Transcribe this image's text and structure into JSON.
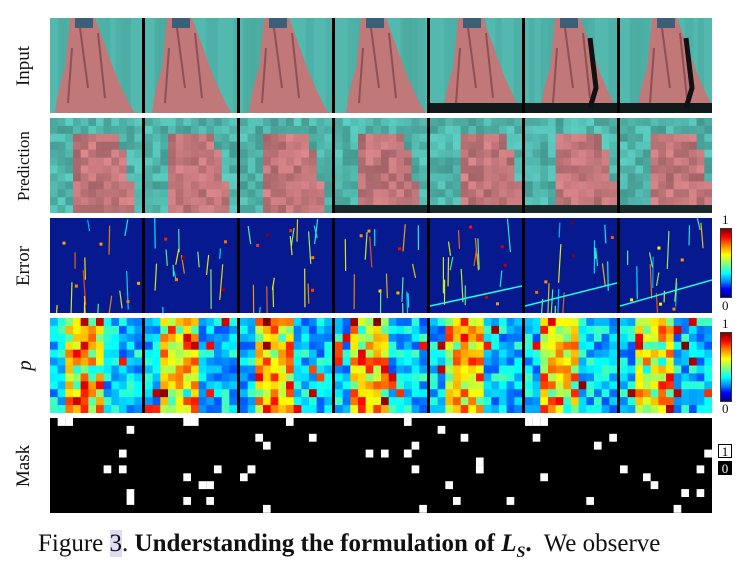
{
  "rows": {
    "input": {
      "label": "Input"
    },
    "prediction": {
      "label": "Prediction"
    },
    "error": {
      "label": "Error",
      "colorbar_max": "1",
      "colorbar_min": "0"
    },
    "p": {
      "label": "p",
      "colorbar_max": "1",
      "colorbar_min": "0"
    },
    "mask": {
      "label": "Mask",
      "legend_one": "1",
      "legend_zero": "0"
    }
  },
  "frames_per_row": 7,
  "colors": {
    "background_teal": "#53b8ae",
    "dress_pink": "#c07878",
    "error_blue": "#06198f",
    "mask_black": "#000000",
    "mask_white": "#ffffff"
  },
  "caption": {
    "prefix": "Figure ",
    "number": "3",
    "period": ". ",
    "bold_text": "Understanding the formulation of ",
    "math": "L",
    "math_sub": "S",
    "bold_end": ".",
    "rest": "  We observe"
  }
}
